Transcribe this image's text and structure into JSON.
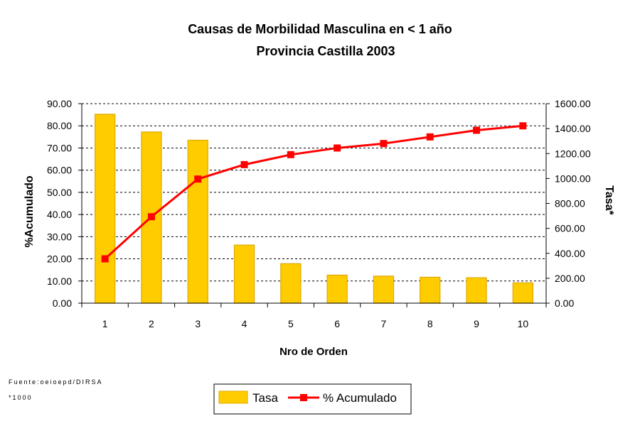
{
  "chart_data": {
    "type": "bar+line",
    "title": "Causas de Morbilidad Masculina en < 1 año",
    "subtitle": "Provincia Castilla 2003",
    "xlabel": "Nro de Orden",
    "ylabel_left": "%Acumulado",
    "ylabel_right": "Tasa*",
    "categories": [
      "1",
      "2",
      "3",
      "4",
      "5",
      "6",
      "7",
      "8",
      "9",
      "10"
    ],
    "left_ylim": [
      0,
      90
    ],
    "left_ticks": [
      "0.00",
      "10.00",
      "20.00",
      "30.00",
      "40.00",
      "50.00",
      "60.00",
      "70.00",
      "80.00",
      "90.00"
    ],
    "right_ylim": [
      0,
      1600
    ],
    "right_ticks": [
      "0.00",
      "200.00",
      "400.00",
      "600.00",
      "800.00",
      "1000.00",
      "1200.00",
      "1400.00",
      "1600.00"
    ],
    "series": [
      {
        "name": "Tasa",
        "type": "bar",
        "axis": "right",
        "values": [
          1515,
          1373,
          1307,
          466,
          317,
          225,
          217,
          208,
          204,
          163
        ]
      },
      {
        "name": "% Acumulado",
        "type": "line",
        "axis": "left",
        "values": [
          20.0,
          39.0,
          56.0,
          62.5,
          67.0,
          70.0,
          72.0,
          75.0,
          78.0,
          80.0
        ]
      }
    ],
    "grid": true,
    "legend": "bottom-center"
  },
  "colors": {
    "bar_fill": "#FFCC00",
    "bar_edge": "#E0A800",
    "line": "#FF0000",
    "marker": "#FF0000",
    "grid": "#000000"
  },
  "footnotes": {
    "source": "Fuente:oeioepd/DIRSA",
    "note": "*1000"
  },
  "legend": {
    "tasa": "Tasa",
    "acumulado": "% Acumulado"
  }
}
